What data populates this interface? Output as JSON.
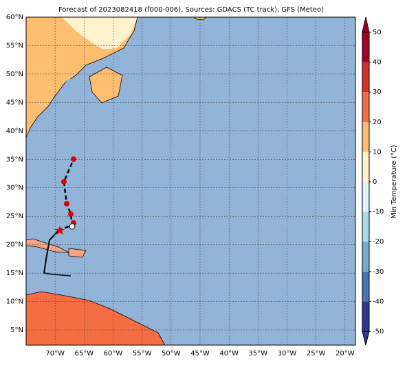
{
  "title": "Forecast of 2023082418 (f000-006), Sources: GDACS (TC track), GFS (Meteo)",
  "map": {
    "lon_range": [
      -75,
      -18.2
    ],
    "lat_range": [
      2.35,
      60
    ],
    "lat_ticks": [
      {
        "value": 5,
        "label": "5°N"
      },
      {
        "value": 10,
        "label": "10°N"
      },
      {
        "value": 15,
        "label": "15°N"
      },
      {
        "value": 20,
        "label": "20°N"
      },
      {
        "value": 25,
        "label": "25°N"
      },
      {
        "value": 30,
        "label": "30°N"
      },
      {
        "value": 35,
        "label": "35°N"
      },
      {
        "value": 40,
        "label": "40°N"
      },
      {
        "value": 45,
        "label": "45°N"
      },
      {
        "value": 50,
        "label": "50°N"
      },
      {
        "value": 55,
        "label": "55°N"
      },
      {
        "value": 60,
        "label": "60°N"
      }
    ],
    "lon_ticks": [
      {
        "value": -70,
        "label": "70°W"
      },
      {
        "value": -65,
        "label": "65°W"
      },
      {
        "value": -60,
        "label": "60°W"
      },
      {
        "value": -55,
        "label": "55°W"
      },
      {
        "value": -50,
        "label": "50°W"
      },
      {
        "value": -45,
        "label": "45°W"
      },
      {
        "value": -40,
        "label": "40°W"
      },
      {
        "value": -35,
        "label": "35°W"
      },
      {
        "value": -30,
        "label": "30°W"
      },
      {
        "value": -25,
        "label": "25°W"
      },
      {
        "value": -20,
        "label": "20°W"
      }
    ]
  },
  "colorbar": {
    "label": "Min Temperature (°C)",
    "lim": [
      -50,
      50
    ],
    "ticks": [
      -50,
      -40,
      -30,
      -20,
      -10,
      0,
      10,
      20,
      30,
      40,
      50
    ],
    "colors": [
      "#313695",
      "#4575b4",
      "#74add1",
      "#abd9e9",
      "#e0f3f8",
      "#fff2cc",
      "#fdbf6f",
      "#f46d43",
      "#d73027",
      "#a50026"
    ]
  }
}
